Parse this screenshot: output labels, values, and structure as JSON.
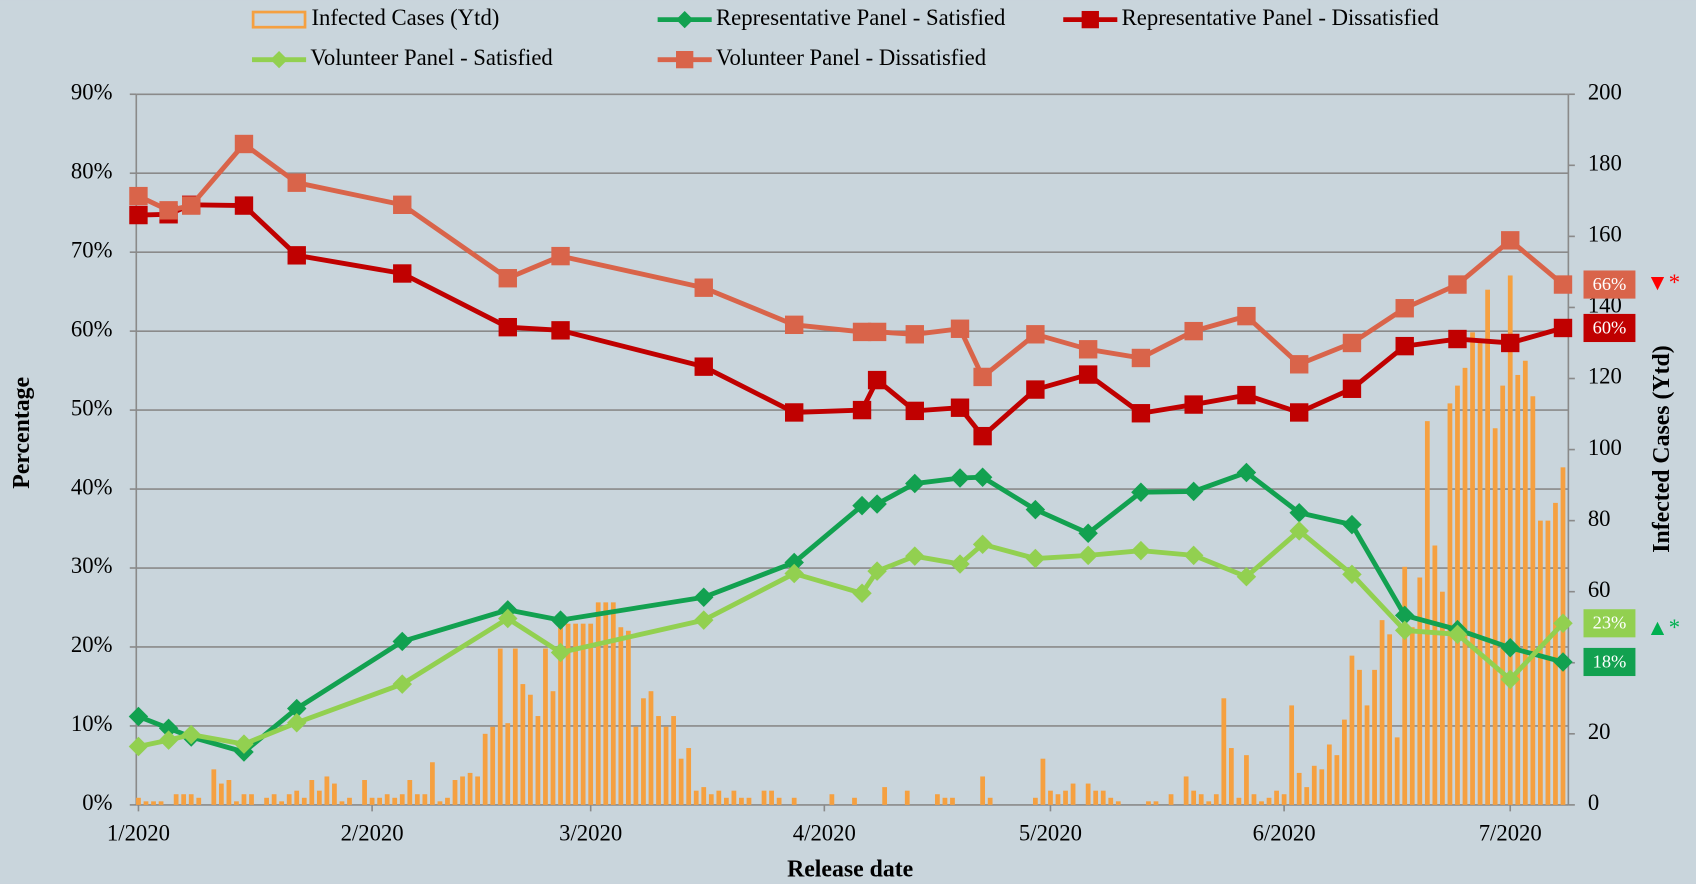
{
  "chart_data": {
    "type": "line",
    "x_label": "Release date",
    "y_label": "Percentage",
    "y2_label": "Infected Cases (Ytd)",
    "background": "#c9d5dc",
    "grid": true,
    "xlim": [
      0,
      190
    ],
    "xticks": [
      {
        "value": 0,
        "label": "1/2020"
      },
      {
        "value": 31,
        "label": "2/2020"
      },
      {
        "value": 60,
        "label": "3/2020"
      },
      {
        "value": 91,
        "label": "4/2020"
      },
      {
        "value": 121,
        "label": "5/2020"
      },
      {
        "value": 152,
        "label": "6/2020"
      },
      {
        "value": 182,
        "label": "7/2020"
      }
    ],
    "ylim": [
      0,
      90
    ],
    "yticks": [
      {
        "value": 0,
        "label": "0%"
      },
      {
        "value": 10,
        "label": "10%"
      },
      {
        "value": 20,
        "label": "20%"
      },
      {
        "value": 30,
        "label": "30%"
      },
      {
        "value": 40,
        "label": "40%"
      },
      {
        "value": 50,
        "label": "50%"
      },
      {
        "value": 60,
        "label": "60%"
      },
      {
        "value": 70,
        "label": "70%"
      },
      {
        "value": 80,
        "label": "80%"
      },
      {
        "value": 90,
        "label": "90%"
      }
    ],
    "y2lim": [
      0,
      200
    ],
    "y2ticks": [
      0,
      20,
      40,
      60,
      80,
      100,
      120,
      140,
      160,
      180,
      200
    ],
    "x": [
      0,
      4,
      7,
      14,
      21,
      35,
      49,
      56,
      75,
      87,
      96,
      98,
      103,
      109,
      112,
      119,
      126,
      133,
      140,
      147,
      154,
      161,
      168,
      175,
      182,
      189
    ],
    "series": [
      {
        "name": "Infected Cases (Ytd)",
        "type": "bar",
        "axis": "y2",
        "color": "#f5a040",
        "x": [
          0,
          1,
          2,
          3,
          4,
          5,
          6,
          7,
          8,
          9,
          10,
          11,
          12,
          13,
          14,
          15,
          16,
          17,
          18,
          19,
          20,
          21,
          22,
          23,
          24,
          25,
          26,
          27,
          28,
          29,
          30,
          31,
          32,
          33,
          34,
          35,
          36,
          37,
          38,
          39,
          40,
          41,
          42,
          43,
          44,
          45,
          46,
          47,
          48,
          49,
          50,
          51,
          52,
          53,
          54,
          55,
          56,
          57,
          58,
          59,
          60,
          61,
          62,
          63,
          64,
          65,
          66,
          67,
          68,
          69,
          70,
          71,
          72,
          73,
          74,
          75,
          76,
          77,
          78,
          79,
          80,
          81,
          82,
          83,
          84,
          85,
          86,
          87,
          88,
          89,
          90,
          91,
          92,
          93,
          94,
          95,
          96,
          97,
          98,
          99,
          100,
          101,
          102,
          103,
          104,
          105,
          106,
          107,
          108,
          109,
          110,
          111,
          112,
          113,
          114,
          115,
          116,
          117,
          118,
          119,
          120,
          121,
          122,
          123,
          124,
          125,
          126,
          127,
          128,
          129,
          130,
          131,
          132,
          133,
          134,
          135,
          136,
          137,
          138,
          139,
          140,
          141,
          142,
          143,
          144,
          145,
          146,
          147,
          148,
          149,
          150,
          151,
          152,
          153,
          154,
          155,
          156,
          157,
          158,
          159,
          160,
          161,
          162,
          163,
          164,
          165,
          166,
          167,
          168,
          169,
          170,
          171,
          172,
          173,
          174,
          175,
          176,
          177,
          178,
          179,
          180,
          181,
          182,
          183,
          184,
          185,
          186,
          187,
          188,
          189
        ],
        "values": [
          2,
          1,
          1,
          1,
          0,
          3,
          3,
          3,
          2,
          0,
          10,
          6,
          7,
          1,
          3,
          3,
          0,
          2,
          3,
          1,
          3,
          4,
          2,
          7,
          4,
          8,
          6,
          1,
          2,
          0,
          7,
          2,
          2,
          3,
          2,
          3,
          7,
          3,
          3,
          12,
          1,
          2,
          7,
          8,
          9,
          8,
          20,
          22,
          44,
          23,
          44,
          34,
          31,
          25,
          44,
          32,
          52,
          51,
          51,
          51,
          51,
          57,
          57,
          57,
          50,
          49,
          22,
          30,
          32,
          25,
          22,
          25,
          13,
          16,
          4,
          5,
          3,
          4,
          2,
          4,
          2,
          2,
          0,
          4,
          4,
          2,
          0,
          2,
          0,
          0,
          0,
          0,
          3,
          0,
          0,
          2,
          0,
          0,
          0,
          5,
          0,
          0,
          4,
          0,
          0,
          0,
          3,
          2,
          2,
          0,
          0,
          0,
          8,
          2,
          0,
          0,
          0,
          0,
          0,
          2,
          13,
          4,
          3,
          4,
          6,
          0,
          6,
          4,
          4,
          2,
          1,
          0,
          0,
          0,
          1,
          1,
          0,
          3,
          0,
          8,
          4,
          3,
          1,
          3,
          30,
          16,
          2,
          14,
          3,
          1,
          2,
          4,
          3,
          28,
          9,
          5,
          11,
          10,
          17,
          14,
          24,
          42,
          38,
          28,
          38,
          52,
          48,
          19,
          67,
          50,
          64,
          108,
          73,
          60,
          113,
          118,
          123,
          133,
          130,
          145,
          106,
          118,
          149,
          121,
          125,
          115,
          80,
          80,
          85,
          95
        ]
      },
      {
        "name": "Representative Panel - Satisfied",
        "type": "line",
        "marker": "diamond",
        "color": "#12a150",
        "values": [
          11.2,
          9.7,
          8.6,
          6.7,
          12.2,
          20.7,
          24.7,
          23.4,
          26.3,
          30.7,
          37.9,
          38.1,
          40.7,
          41.4,
          41.5,
          37.4,
          34.4,
          39.6,
          39.7,
          42.1,
          37.0,
          35.5,
          24.0,
          22.2,
          19.9,
          18.1
        ],
        "value_labels": [
          null,
          null,
          null,
          null,
          null,
          null,
          null,
          null,
          null,
          null,
          null,
          null,
          null,
          null,
          null,
          null,
          null,
          null,
          null,
          null,
          null,
          null,
          null,
          null,
          null,
          "18%"
        ]
      },
      {
        "name": "Representative Panel - Dissatisfied",
        "type": "line",
        "marker": "square",
        "color": "#c00000",
        "values": [
          74.7,
          74.8,
          76.0,
          75.9,
          69.6,
          67.3,
          60.5,
          60.1,
          55.5,
          49.7,
          50.0,
          53.8,
          49.9,
          50.3,
          46.7,
          52.6,
          54.5,
          49.6,
          50.7,
          51.9,
          49.7,
          52.7,
          58.1,
          59.0,
          58.5,
          60.4
        ],
        "value_labels": [
          null,
          null,
          null,
          null,
          null,
          null,
          null,
          null,
          null,
          null,
          null,
          null,
          null,
          null,
          null,
          null,
          null,
          null,
          null,
          null,
          null,
          null,
          null,
          null,
          null,
          "60%"
        ]
      },
      {
        "name": "Volunteer Panel - Satisfied",
        "type": "line",
        "marker": "diamond",
        "color": "#92d050",
        "values": [
          7.4,
          8.2,
          8.9,
          7.7,
          10.4,
          15.3,
          23.6,
          19.3,
          23.4,
          29.3,
          26.8,
          29.6,
          31.5,
          30.5,
          33.0,
          31.2,
          31.6,
          32.2,
          31.6,
          28.9,
          34.7,
          29.2,
          22.1,
          21.6,
          15.9,
          23.0
        ],
        "value_labels": [
          null,
          null,
          null,
          null,
          null,
          null,
          null,
          null,
          null,
          null,
          null,
          null,
          null,
          null,
          null,
          null,
          null,
          null,
          null,
          null,
          null,
          null,
          null,
          null,
          null,
          "23%"
        ],
        "annotation": "▲*",
        "annotation_color": "#00b050"
      },
      {
        "name": "Volunteer Panel - Dissatisfied",
        "type": "line",
        "marker": "square",
        "color": "#d9644a",
        "values": [
          77.1,
          75.3,
          75.9,
          83.7,
          78.8,
          76.0,
          66.7,
          69.5,
          65.5,
          60.8,
          59.9,
          59.9,
          59.6,
          60.3,
          54.2,
          59.6,
          57.7,
          56.6,
          60.0,
          61.9,
          55.8,
          58.5,
          62.9,
          65.9,
          71.5,
          65.9
        ],
        "value_labels": [
          null,
          null,
          null,
          null,
          null,
          null,
          null,
          null,
          null,
          null,
          null,
          null,
          null,
          null,
          null,
          null,
          null,
          null,
          null,
          null,
          null,
          null,
          null,
          null,
          null,
          "66%"
        ],
        "annotation": "▼*",
        "annotation_color": "#ff0000"
      }
    ]
  }
}
